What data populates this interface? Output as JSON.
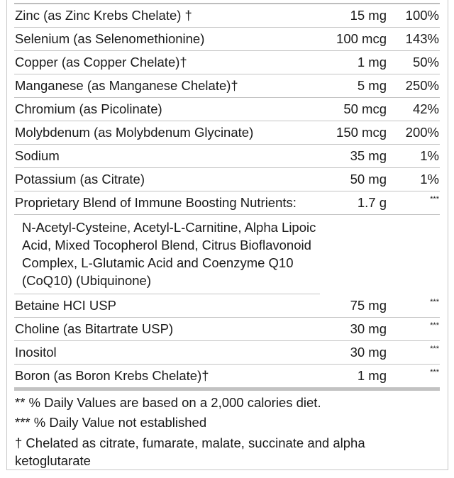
{
  "rows": [
    {
      "name": "Zinc (as Zinc Krebs Chelate) †",
      "amount": "15 mg",
      "dv": "100%"
    },
    {
      "name": "Selenium (as Selenomethionine)",
      "amount": "100 mcg",
      "dv": "143%"
    },
    {
      "name": "Copper (as Copper Chelate)†",
      "amount": "1 mg",
      "dv": "50%"
    },
    {
      "name": "Manganese (as Manganese Chelate)†",
      "amount": "5 mg",
      "dv": "250%"
    },
    {
      "name": "Chromium (as Picolinate)",
      "amount": "50 mcg",
      "dv": "42%"
    },
    {
      "name": "Molybdenum (as Molybdenum Glycinate)",
      "amount": "150 mcg",
      "dv": "200%"
    },
    {
      "name": "Sodium",
      "amount": "35 mg",
      "dv": "1%"
    },
    {
      "name": "Potassium (as Citrate)",
      "amount": "50 mg",
      "dv": "1%"
    },
    {
      "name": "Proprietary Blend of Immune Boosting Nutrients:",
      "amount": "1.7 g",
      "dv": "***"
    }
  ],
  "blend_ingredients": "N-Acetyl-Cysteine, Acetyl-L-Carnitine, Alpha Lipoic Acid, Mixed Tocopherol Blend, Citrus Bioflavonoid Complex, L-Glutamic Acid and Coenzyme Q10 (CoQ10) (Ubiquinone)",
  "rows2": [
    {
      "name": "Betaine HCI USP",
      "amount": "75 mg",
      "dv": "***"
    },
    {
      "name": "Choline (as Bitartrate USP)",
      "amount": "30 mg",
      "dv": "***"
    },
    {
      "name": "Inositol",
      "amount": "30 mg",
      "dv": "***"
    },
    {
      "name": "Boron (as Boron Krebs Chelate)†",
      "amount": "1 mg",
      "dv": "***"
    }
  ],
  "footnotes": [
    "** % Daily Values are based on a 2,000 calories diet.",
    "*** % Daily Value not established",
    "† Chelated as citrate, fumarate, malate, succinate and alpha ketoglutarate"
  ]
}
